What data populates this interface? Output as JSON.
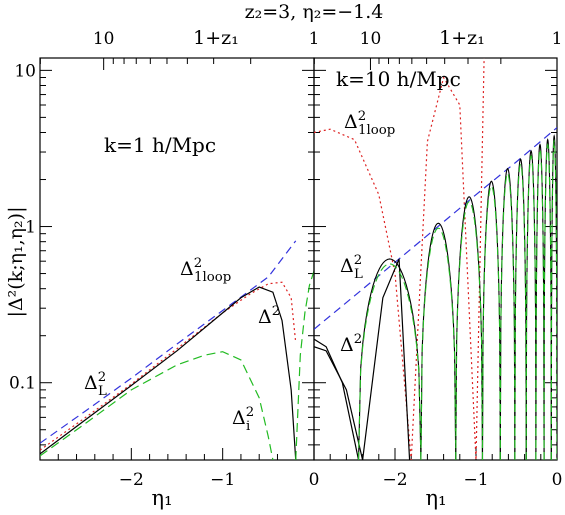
{
  "figure": {
    "top_title": "z₂=3,  η₂=−1.4",
    "y_axis_label": "|Δ²(k;η₁,η₂)|",
    "x_axis_label": "η₁",
    "top_axis_label": "1+z₁"
  },
  "chart_data": [
    {
      "type": "line",
      "panel": "left",
      "annotation": "k=1 h/Mpc",
      "xlim": [
        -3,
        0
      ],
      "ylim": [
        0.032,
        12
      ],
      "yscale": "log",
      "x_ticks": [
        {
          "value": -2,
          "label": "−2"
        },
        {
          "value": -1,
          "label": "−1"
        },
        {
          "value": 0,
          "label": "0"
        }
      ],
      "y_ticks": [
        {
          "value": 0.1,
          "label": "0.1"
        },
        {
          "value": 1,
          "label": "1"
        },
        {
          "value": 10,
          "label": "10"
        }
      ],
      "top_ticks": [
        {
          "value": 10,
          "label": "10"
        },
        {
          "value": 1,
          "label": "1"
        }
      ],
      "series": [
        {
          "name": "Δ²_L",
          "color": "#3333dd",
          "dash": "8,5",
          "x": [
            -3.0,
            -2.5,
            -2.0,
            -1.5,
            -1.0,
            -0.5,
            -0.2
          ],
          "y": [
            0.041,
            0.066,
            0.107,
            0.177,
            0.29,
            0.476,
            0.81
          ]
        },
        {
          "name": "Δ²_1loop",
          "color": "#dd2222",
          "dash": "2,3",
          "x": [
            -3.0,
            -2.5,
            -2.0,
            -1.5,
            -1.0,
            -0.7,
            -0.5,
            -0.35,
            -0.25,
            -0.2
          ],
          "y": [
            0.037,
            0.06,
            0.098,
            0.165,
            0.28,
            0.37,
            0.43,
            0.44,
            0.35,
            0.18
          ]
        },
        {
          "name": "Δ²",
          "color": "#000000",
          "dash": "",
          "x": [
            -3.0,
            -2.5,
            -2.0,
            -1.5,
            -1.0,
            -0.8,
            -0.6,
            -0.45,
            -0.35,
            -0.25,
            -0.2
          ],
          "y": [
            0.035,
            0.058,
            0.096,
            0.16,
            0.28,
            0.35,
            0.41,
            0.38,
            0.25,
            0.09,
            0.032
          ]
        },
        {
          "name": "Δ²_i",
          "color": "#22bb22",
          "dash": "9,5",
          "x": [
            -3.0,
            -2.5,
            -2.0,
            -1.5,
            -1.2,
            -1.0,
            -0.8,
            -0.6,
            -0.5,
            -0.45
          ],
          "y": [
            0.034,
            0.055,
            0.09,
            0.13,
            0.15,
            0.158,
            0.14,
            0.08,
            0.045,
            0.032
          ]
        },
        {
          "name": "Δ²_i",
          "color": "#22bb22",
          "dash": "9,5",
          "x": [
            -0.2,
            -0.15,
            -0.1,
            -0.05,
            0.0
          ],
          "y": [
            0.032,
            0.15,
            0.28,
            0.42,
            0.52
          ]
        }
      ],
      "labels": {
        "linear": {
          "base": "Δ",
          "sup": "2",
          "sub": "L"
        },
        "oneloop": {
          "base": "Δ",
          "sup": "2",
          "sub": "1loop"
        },
        "full": {
          "base": "Δ",
          "sup": "2"
        },
        "initial": {
          "base": "Δ",
          "sup": "2",
          "sub": "i"
        }
      }
    },
    {
      "type": "line",
      "panel": "right",
      "annotation": "k=10 h/Mpc",
      "xlim": [
        -3,
        0
      ],
      "ylim": [
        0.032,
        12
      ],
      "yscale": "log",
      "x_ticks": [
        {
          "value": -2,
          "label": "−2"
        },
        {
          "value": -1,
          "label": "−1"
        },
        {
          "value": 0,
          "label": "0"
        }
      ],
      "top_ticks": [
        {
          "value": 10,
          "label": "10"
        },
        {
          "value": 1,
          "label": "1"
        }
      ],
      "series": [
        {
          "name": "Δ²_L",
          "color": "#3333dd",
          "dash": "8,5",
          "x": [
            -3.0,
            -2.5,
            -2.0,
            -1.5,
            -1.0,
            -0.5,
            0.0
          ],
          "y": [
            0.22,
            0.36,
            0.59,
            0.97,
            1.6,
            2.6,
            4.3
          ]
        },
        {
          "name": "Δ²_1loop",
          "color": "#dd2222",
          "dash": "2,3",
          "x": [
            -3.0,
            -2.8,
            -2.5,
            -2.2,
            -2.0,
            -1.8,
            -1.6,
            -1.4,
            -1.2,
            -1.0,
            -0.9
          ],
          "y": [
            4.0,
            4.2,
            3.6,
            1.6,
            0.5,
            0.032,
            3.5,
            9.0,
            6.0,
            0.032,
            12.0
          ]
        },
        {
          "name": "Δ²",
          "color": "#000000",
          "dash": "",
          "x": [
            -3.0,
            -2.85,
            -2.6,
            -2.4,
            -2.15,
            -1.95,
            -1.82
          ],
          "y": [
            0.17,
            0.16,
            0.09,
            0.032,
            0.35,
            0.62,
            0.032
          ]
        },
        {
          "name": "Δ²",
          "color": "#000000",
          "dash": "",
          "x": [
            -3.0,
            -2.85,
            -2.65,
            -2.45
          ],
          "y": [
            0.19,
            0.17,
            0.1,
            0.032
          ]
        }
      ],
      "oscillation_arches": {
        "color_outer": "#000000",
        "color_inner": "#22bb22",
        "starts": [
          -2.45,
          -1.68,
          -1.25,
          -0.92,
          -0.7,
          -0.52,
          -0.38,
          -0.26,
          -0.16,
          -0.07
        ],
        "ends": [
          -1.68,
          -1.25,
          -0.92,
          -0.7,
          -0.52,
          -0.38,
          -0.26,
          -0.16,
          -0.07,
          0.0
        ],
        "peaks": [
          0.62,
          1.05,
          1.55,
          1.95,
          2.35,
          2.7,
          3.05,
          3.35,
          3.6,
          3.8
        ]
      },
      "labels": {
        "linear": {
          "base": "Δ",
          "sup": "2",
          "sub": "L"
        },
        "oneloop": {
          "base": "Δ",
          "sup": "2",
          "sub": "1loop"
        },
        "full": {
          "base": "Δ",
          "sup": "2"
        }
      }
    }
  ]
}
